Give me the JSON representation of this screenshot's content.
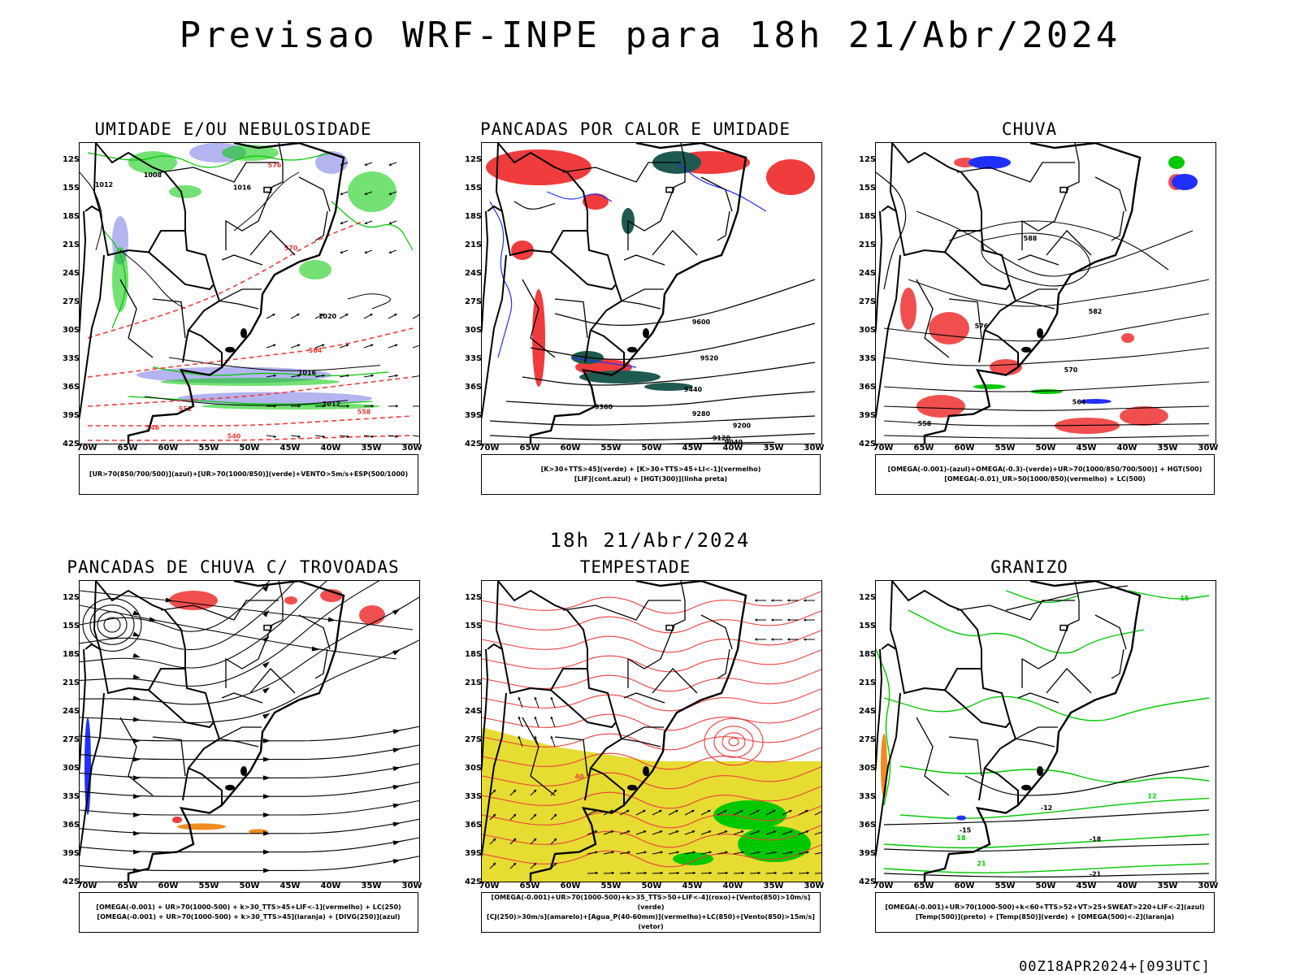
{
  "header": {
    "title": "Previsao WRF-INPE  para 18h 21/Abr/2024"
  },
  "mid_header": {
    "title": "18h 21/Abr/2024"
  },
  "footer": {
    "run": "00Z18APR2024+[093UTC]"
  },
  "axes": {
    "lat_labels": [
      "12S",
      "15S",
      "18S",
      "21S",
      "24S",
      "27S",
      "30S",
      "33S",
      "36S",
      "39S",
      "42S"
    ],
    "lon_labels": [
      "70W",
      "65W",
      "60W",
      "55W",
      "50W",
      "45W",
      "40W",
      "35W",
      "30W"
    ]
  },
  "panels": [
    {
      "title": "UMIDADE E/OU NEBULOSIDADE",
      "legend": [
        "[UR>70(850/700/500)](azul)+[UR>70(1000/850)](verde)+VENTO>5m/s+ESP(500/1000)"
      ],
      "contour_labels": [
        "1008",
        "1012",
        "1016",
        "1020",
        "1016",
        "1012",
        "576",
        "570",
        "564",
        "558",
        "552",
        "546",
        "540"
      ]
    },
    {
      "title": "PANCADAS POR CALOR E UMIDADE",
      "legend": [
        "[K>30+TTS>45](verde) + [K>30+TTS>45+LI<-1](vermelho)",
        "[LIF](cont.azul) + [HGT(300)](linha preta)"
      ],
      "contour_labels": [
        "9600",
        "9520",
        "9440",
        "9360",
        "9280",
        "9200",
        "9120",
        "9040"
      ]
    },
    {
      "title": "CHUVA",
      "legend": [
        "[OMEGA(-0.001)-(azul)+OMEGA(-0.3)-(verde)+UR>70(1000/850/700/500)] + HGT(500)",
        "[OMEGA(-0.01)_UR>50(1000/850)(vermelho) + LC(500)"
      ],
      "contour_labels": [
        "588",
        "582",
        "576",
        "570",
        "564",
        "558"
      ]
    },
    {
      "title": "PANCADAS DE CHUVA C/ TROVOADAS",
      "legend": [
        "[OMEGA(-0.001) + UR>70(1000-500) + k>30_TTS>45+LIF<-1](vermelho) + LC(250)",
        "[OMEGA(-0.001) + UR>70(1000-500) + k>30_TTS>45](laranja) + [DIVG(250)](azul)"
      ],
      "contour_labels": []
    },
    {
      "title": "TEMPESTADE",
      "legend": [
        "[OMEGA(-0.001)+UR>70(1000-500)+k>35_TTS>50+LIF<-4](roxo)+[Vento(850)>10m/s](verde)",
        "[CJ(250)>30m/s](amarelo)+[Agua_P(40-60mm)](vermelho)+LC(850)+[Vento(850)>15m/s](vetor)"
      ],
      "contour_labels": [
        "40"
      ]
    },
    {
      "title": "GRANIZO",
      "legend": [
        "[OMEGA(-0.001)+UR>70(1000-500)+k<60+TTS>52+VT>25+SWEAT>220+LIF<-2](azul)",
        "[Temp(500)](preto) + [Temp(850)](verde) + [OMEGA(500)<-2](laranja)"
      ],
      "contour_labels": [
        "15",
        "12",
        "-12",
        "-15",
        "18",
        "-18",
        "21",
        "-21"
      ]
    }
  ],
  "colors": {
    "coast": "#000000",
    "green": "#00c800",
    "blue": "#2030ff",
    "red": "#f03c3c",
    "lavender": "#b4b4f0",
    "teal": "#1e5a50",
    "yellow": "#e6dc32",
    "orange": "#f08c1e"
  }
}
